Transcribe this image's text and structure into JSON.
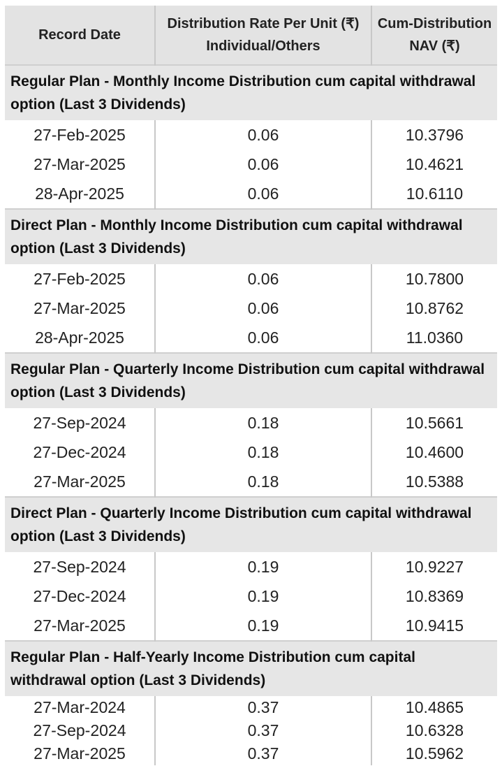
{
  "table": {
    "headers": [
      [
        "Record Date"
      ],
      [
        "Distribution Rate Per Unit  (₹)",
        "Individual/Others"
      ],
      [
        "Cum-Distribution",
        "NAV (₹)"
      ]
    ],
    "sections": [
      {
        "title": "Regular Plan - Monthly Income Distribution cum capital withdrawal option (Last 3 Dividends)",
        "rows": [
          [
            "27-Feb-2025",
            "0.06",
            "10.3796"
          ],
          [
            "27-Mar-2025",
            "0.06",
            "10.4621"
          ],
          [
            "28-Apr-2025",
            "0.06",
            "10.6110"
          ]
        ]
      },
      {
        "title": "Direct Plan - Monthly Income Distribution cum capital withdrawal option (Last 3 Dividends)",
        "rows": [
          [
            "27-Feb-2025",
            "0.06",
            "10.7800"
          ],
          [
            "27-Mar-2025",
            "0.06",
            "10.8762"
          ],
          [
            "28-Apr-2025",
            "0.06",
            "11.0360"
          ]
        ]
      },
      {
        "title": "Regular Plan - Quarterly Income Distribution cum capital withdrawal option (Last 3 Dividends)",
        "rows": [
          [
            "27-Sep-2024",
            "0.18",
            "10.5661"
          ],
          [
            "27-Dec-2024",
            "0.18",
            "10.4600"
          ],
          [
            "27-Mar-2025",
            "0.18",
            "10.5388"
          ]
        ]
      },
      {
        "title": "Direct Plan - Quarterly Income Distribution cum capital withdrawal option (Last 3 Dividends)",
        "rows": [
          [
            "27-Sep-2024",
            "0.19",
            "10.9227"
          ],
          [
            "27-Dec-2024",
            "0.19",
            "10.8369"
          ],
          [
            "27-Mar-2025",
            "0.19",
            "10.9415"
          ]
        ]
      },
      {
        "title": "Regular Plan - Half-Yearly Income Distribution cum capital withdrawal option (Last 3 Dividends)",
        "rows": [
          [
            "27-Mar-2024",
            "0.37",
            "10.4865"
          ],
          [
            "27-Sep-2024",
            "0.37",
            "10.6328"
          ],
          [
            "27-Mar-2025",
            "0.37",
            "10.5962"
          ]
        ]
      }
    ]
  }
}
